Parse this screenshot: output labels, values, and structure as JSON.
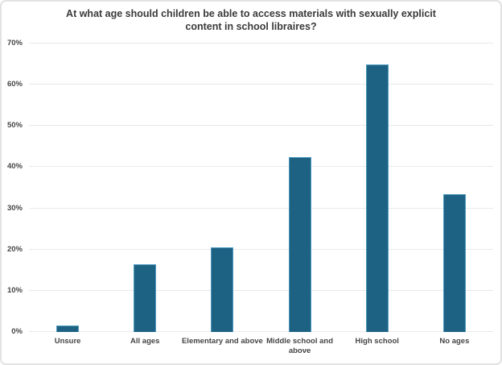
{
  "header": {
    "title_display": "At what age should children be able to access materials with sexually explicit\ncontent in school libraires?"
  },
  "chart_data": {
    "type": "bar",
    "title": "At what age should children be able to access materials with sexually explicit content in school libraires?",
    "categories": [
      "Unsure",
      "All ages",
      "Elementary and above",
      "Middle school and above",
      "High school",
      "No ages"
    ],
    "values": [
      1.5,
      16.5,
      20.5,
      42.5,
      65,
      33.5
    ],
    "xtick_lines": [
      [
        "Unsure"
      ],
      [
        "All ages"
      ],
      [
        "Elementary and above"
      ],
      [
        "Middle school and",
        "above"
      ],
      [
        "High school"
      ],
      [
        "No ages"
      ]
    ],
    "xlabel": "",
    "ylabel": "",
    "ylim": [
      0,
      70
    ],
    "ytick_step": 10,
    "ytick_labels": [
      "0%",
      "10%",
      "20%",
      "30%",
      "40%",
      "50%",
      "60%",
      "70%"
    ],
    "grid": true,
    "legend": false,
    "colors": {
      "bar_fill": "#1e6283",
      "bar_border": "#4d9abf",
      "gridline": "#e9e9e9",
      "tick_label": "#454545",
      "title": "#3a3a3a",
      "background": "#ffffff",
      "frame_border": "#e2e2e2"
    }
  }
}
